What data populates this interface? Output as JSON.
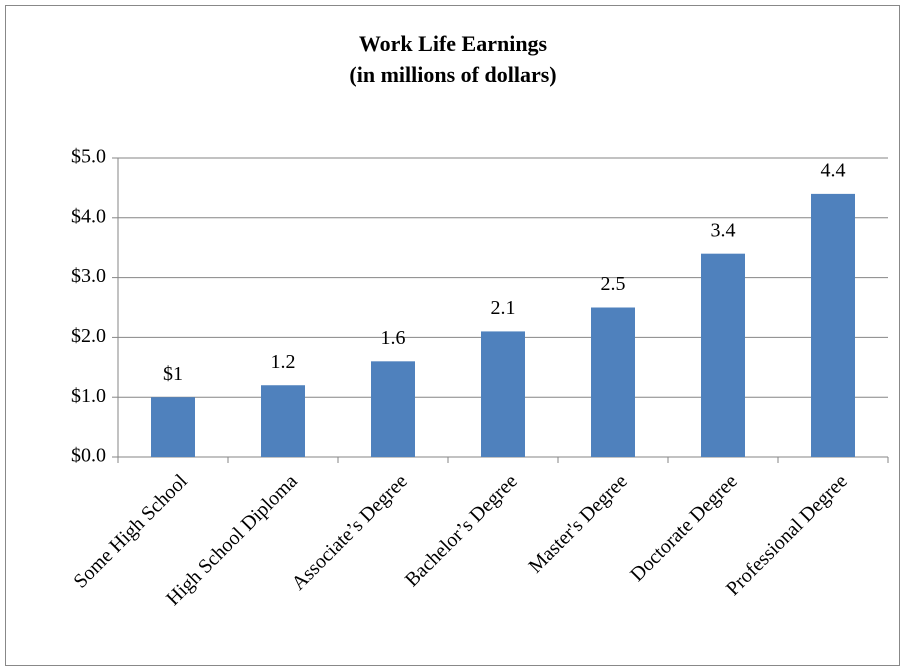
{
  "chart_data": {
    "type": "bar",
    "title": "Work Life Earnings",
    "subtitle": "(in millions of dollars)",
    "categories": [
      "Some High School",
      "High School Diploma",
      "Associate’s Degree",
      "Bachelor’s Degree",
      "Master's Degree",
      "Doctorate Degree",
      "Professional Degree"
    ],
    "values": [
      1,
      1.2,
      1.6,
      2.1,
      2.5,
      3.4,
      4.4
    ],
    "value_labels": [
      "$1",
      "1.2",
      "1.6",
      "2.1",
      "2.5",
      "3.4",
      "4.4"
    ],
    "color": "#4f81bd",
    "ylim": [
      0,
      5
    ],
    "yticks": [
      {
        "value": 0,
        "label": "$0.0"
      },
      {
        "value": 1,
        "label": "$1.0"
      },
      {
        "value": 2,
        "label": "$2.0"
      },
      {
        "value": 3,
        "label": "$3.0"
      },
      {
        "value": 4,
        "label": "$4.0"
      },
      {
        "value": 5,
        "label": "$5.0"
      }
    ],
    "grid": true
  }
}
